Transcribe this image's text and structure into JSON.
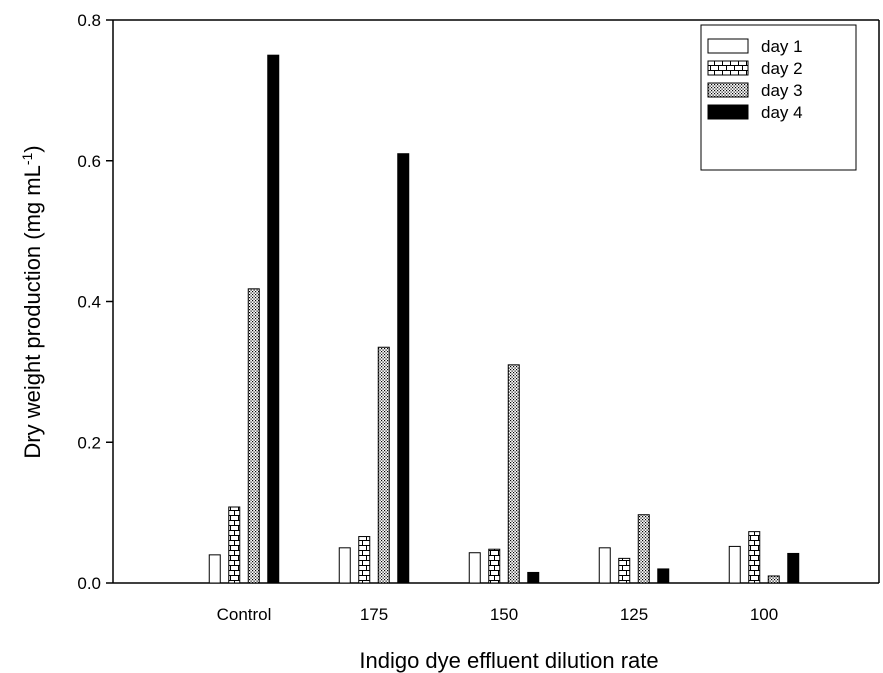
{
  "chart_data": {
    "type": "bar",
    "xlabel": "Indigo dye effluent dilution rate",
    "ylabel": "Dry weight production (mg mL",
    "ylabel_sup": "-1",
    "ylabel_close": ")",
    "ylim": [
      0,
      0.8
    ],
    "yticks": [
      "0.0",
      "0.2",
      "0.4",
      "0.6",
      "0.8"
    ],
    "categories": [
      "Control",
      "175",
      "150",
      "125",
      "100"
    ],
    "series": [
      {
        "name": "day 1",
        "pattern": "empty",
        "values": [
          0.04,
          0.05,
          0.043,
          0.05,
          0.052
        ]
      },
      {
        "name": "day 2",
        "pattern": "brick",
        "values": [
          0.108,
          0.066,
          0.048,
          0.035,
          0.073
        ]
      },
      {
        "name": "day 3",
        "pattern": "dots",
        "values": [
          0.418,
          0.335,
          0.31,
          0.097,
          0.01
        ]
      },
      {
        "name": "day 4",
        "pattern": "solid",
        "values": [
          0.75,
          0.61,
          0.015,
          0.02,
          0.042
        ]
      }
    ],
    "legend_position": "top-right",
    "grid": false
  }
}
